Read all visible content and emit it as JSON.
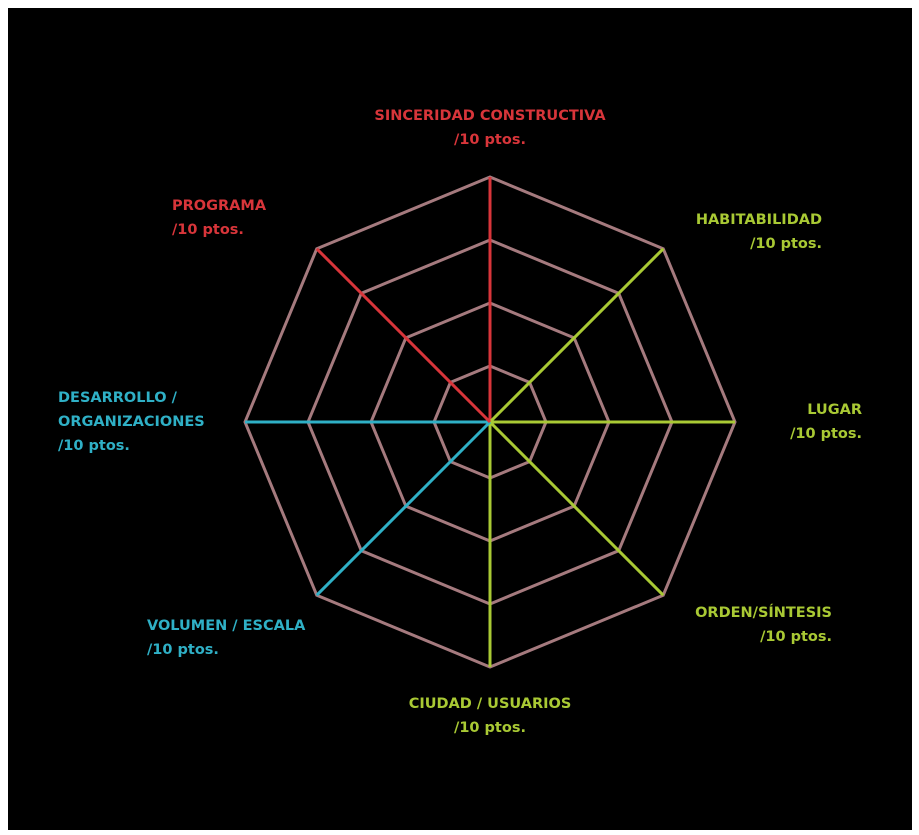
{
  "axes": [
    {
      "lines": [
        "SINCERIDAD CONSTRUCTIVA",
        "/10 ptos."
      ],
      "color": "#d8353a"
    },
    {
      "lines": [
        "HABITABILIDAD",
        "/10 ptos."
      ],
      "color": "#a9c934"
    },
    {
      "lines": [
        "LUGAR",
        "/10 ptos."
      ],
      "color": "#a9c934"
    },
    {
      "lines": [
        "ORDEN/SÍNTESIS",
        "/10 ptos."
      ],
      "color": "#a9c934"
    },
    {
      "lines": [
        "CIUDAD / USUARIOS",
        "/10 ptos."
      ],
      "color": "#a9c934"
    },
    {
      "lines": [
        "VOLUMEN / ESCALA",
        "/10 ptos."
      ],
      "color": "#2fb0c6"
    },
    {
      "lines": [
        "DESARROLLO /",
        "ORGANIZACIONES",
        "/10 ptos."
      ],
      "color": "#2fb0c6"
    },
    {
      "lines": [
        "PROGRAMA",
        "/10 ptos."
      ],
      "color": "#d8353a"
    }
  ]
}
